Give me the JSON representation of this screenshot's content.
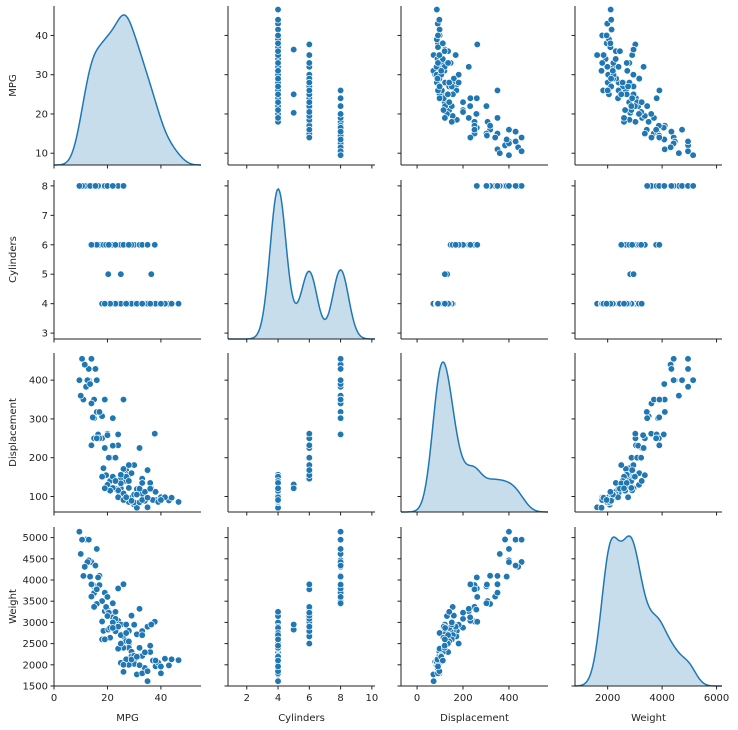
{
  "chart_data": {
    "type": "scatter",
    "kind": "pairplot",
    "diag_kind": "kde",
    "color": "#1f77b4",
    "variables": [
      "MPG",
      "Cylinders",
      "Displacement",
      "Weight"
    ],
    "axes": {
      "MPG": {
        "range": [
          0,
          55
        ],
        "ticks": [
          0,
          20,
          40
        ],
        "y_range": [
          7,
          47.5
        ],
        "y_ticks": [
          10,
          20,
          30,
          40
        ]
      },
      "Cylinders": {
        "range": [
          0.8,
          10.2
        ],
        "ticks": [
          2,
          4,
          6,
          8,
          10
        ],
        "y_range": [
          2.8,
          8.2
        ],
        "y_ticks": [
          3,
          4,
          5,
          6,
          7,
          8
        ]
      },
      "Displacement": {
        "range": [
          -70,
          570
        ],
        "ticks": [
          0,
          200,
          400
        ],
        "y_range": [
          60,
          470
        ],
        "y_ticks": [
          100,
          200,
          300,
          400
        ]
      },
      "Weight": {
        "range": [
          800,
          6200
        ],
        "ticks": [
          2000,
          4000,
          6000
        ],
        "y_range": [
          1500,
          5250
        ],
        "y_ticks": [
          1500,
          2000,
          2500,
          3000,
          3500,
          4000,
          4500,
          5000
        ]
      }
    },
    "records": [
      [
        18,
        8,
        307,
        3504
      ],
      [
        15,
        8,
        350,
        3693
      ],
      [
        16,
        8,
        318,
        3436
      ],
      [
        14,
        8,
        455,
        4425
      ],
      [
        12,
        8,
        383,
        4955
      ],
      [
        13,
        8,
        400,
        4464
      ],
      [
        11,
        8,
        350,
        4096
      ],
      [
        10,
        8,
        360,
        4615
      ],
      [
        14,
        8,
        340,
        3609
      ],
      [
        15,
        8,
        302,
        3850
      ],
      [
        16,
        8,
        400,
        4732
      ],
      [
        13,
        8,
        429,
        4952
      ],
      [
        17,
        8,
        318,
        4100
      ],
      [
        19,
        8,
        350,
        3700
      ],
      [
        20,
        8,
        262,
        3600
      ],
      [
        24,
        8,
        260,
        3800
      ],
      [
        16.5,
        8,
        260,
        4060
      ],
      [
        12.5,
        8,
        400,
        4422
      ],
      [
        26,
        8,
        350,
        3900
      ],
      [
        11.5,
        8,
        440,
        4312
      ],
      [
        14.5,
        8,
        304,
        3892
      ],
      [
        13.5,
        8,
        390,
        4080
      ],
      [
        10.5,
        8,
        455,
        4951
      ],
      [
        9.5,
        8,
        400,
        5140
      ],
      [
        22,
        8,
        302,
        3452
      ],
      [
        15.5,
        8,
        429,
        4341
      ],
      [
        18,
        6,
        250,
        3021
      ],
      [
        21,
        6,
        200,
        2875
      ],
      [
        19,
        6,
        225,
        3264
      ],
      [
        15,
        6,
        250,
        3366
      ],
      [
        24,
        6,
        232,
        3039
      ],
      [
        17,
        6,
        250,
        3880
      ],
      [
        20,
        6,
        258,
        3302
      ],
      [
        22,
        6,
        231,
        3120
      ],
      [
        18.5,
        6,
        173,
        2800
      ],
      [
        25,
        6,
        146,
        2720
      ],
      [
        27,
        6,
        168,
        2930
      ],
      [
        28,
        6,
        156,
        2800
      ],
      [
        30,
        6,
        181,
        2945
      ],
      [
        32,
        6,
        225,
        3320
      ],
      [
        26,
        6,
        171,
        2670
      ],
      [
        16,
        6,
        250,
        3781
      ],
      [
        14,
        6,
        232,
        3897
      ],
      [
        37.7,
        6,
        262,
        3015
      ],
      [
        23,
        6,
        200,
        3085
      ],
      [
        29,
        6,
        160,
        3160
      ],
      [
        33,
        6,
        146,
        2795
      ],
      [
        19.5,
        6,
        155,
        3365
      ],
      [
        20.5,
        6,
        200,
        3230
      ],
      [
        28,
        6,
        181,
        2500
      ],
      [
        35,
        6,
        168,
        2900
      ],
      [
        25,
        5,
        121,
        2950
      ],
      [
        20.3,
        5,
        131,
        2830
      ],
      [
        36.4,
        5,
        121,
        2950
      ],
      [
        30,
        4,
        79,
        2074
      ],
      [
        35,
        4,
        72,
        1613
      ],
      [
        40,
        4,
        98,
        1800
      ],
      [
        43,
        4,
        90,
        1985
      ],
      [
        44,
        4,
        97,
        2130
      ],
      [
        46.6,
        4,
        86,
        2110
      ],
      [
        32,
        4,
        108,
        2200
      ],
      [
        28,
        4,
        122,
        2400
      ],
      [
        26,
        4,
        97,
        1835
      ],
      [
        24,
        4,
        113,
        2372
      ],
      [
        31,
        4,
        71,
        1773
      ],
      [
        29,
        4,
        97,
        2310
      ],
      [
        27,
        4,
        140,
        2560
      ],
      [
        25,
        4,
        98,
        2046
      ],
      [
        23,
        4,
        120,
        2790
      ],
      [
        21,
        4,
        140,
        2870
      ],
      [
        34,
        4,
        89,
        1925
      ],
      [
        36,
        4,
        135,
        2300
      ],
      [
        38,
        4,
        91,
        1965
      ],
      [
        33,
        4,
        107,
        2210
      ],
      [
        30,
        4,
        85,
        2020
      ],
      [
        27,
        4,
        151,
        2950
      ],
      [
        25,
        4,
        156,
        2700
      ],
      [
        22,
        4,
        151,
        3000
      ],
      [
        20,
        4,
        130,
        3150
      ],
      [
        18,
        4,
        151,
        2600
      ],
      [
        31,
        4,
        119,
        2720
      ],
      [
        28,
        4,
        86,
        2000
      ],
      [
        26,
        4,
        108,
        2400
      ],
      [
        24,
        4,
        116,
        2900
      ],
      [
        32,
        4,
        85,
        1990
      ],
      [
        37,
        4,
        91,
        2100
      ],
      [
        39,
        4,
        86,
        2050
      ],
      [
        41.5,
        4,
        98,
        2144
      ],
      [
        29,
        4,
        97,
        2200
      ],
      [
        34,
        4,
        112,
        2295
      ],
      [
        27,
        4,
        97,
        2130
      ],
      [
        33,
        4,
        91,
        1800
      ],
      [
        30,
        4,
        105,
        2215
      ],
      [
        24,
        4,
        98,
        2380
      ],
      [
        26,
        4,
        91,
        2000
      ],
      [
        32,
        4,
        120,
        2400
      ],
      [
        28,
        4,
        140,
        2550
      ],
      [
        22,
        4,
        122,
        2870
      ],
      [
        25,
        4,
        134,
        2500
      ],
      [
        35,
        4,
        97,
        1850
      ],
      [
        29,
        4,
        89,
        2125
      ],
      [
        31,
        4,
        105,
        2190
      ],
      [
        38,
        4,
        112,
        2100
      ],
      [
        23,
        4,
        140,
        3250
      ],
      [
        27,
        4,
        98,
        2750
      ],
      [
        36,
        4,
        120,
        2450
      ],
      [
        21,
        4,
        115,
        2640
      ],
      [
        33,
        4,
        135,
        2700
      ],
      [
        40,
        4,
        91,
        1960
      ],
      [
        19,
        4,
        121,
        2600
      ]
    ]
  }
}
